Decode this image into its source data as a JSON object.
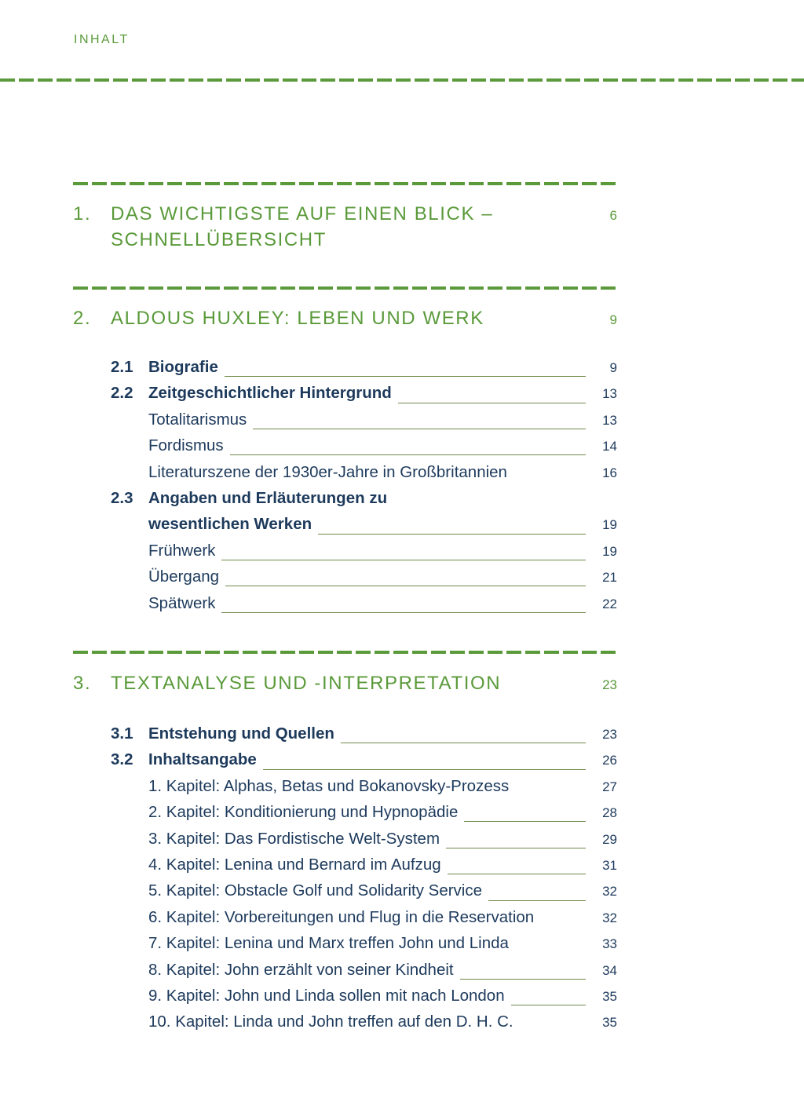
{
  "running_head": "INHALT",
  "colors": {
    "accent_green": "#5a9a3a",
    "text_navy": "#1d3a5c"
  },
  "sections": [
    {
      "num": "1.",
      "title_lines": [
        "DAS WICHTIGSTE AUF EINEN BLICK –",
        "SCHNELLÜBERSICHT"
      ],
      "page": "6",
      "entries": []
    },
    {
      "num": "2.",
      "title_lines": [
        "ALDOUS HUXLEY: LEBEN UND WERK"
      ],
      "page": "9",
      "entries": [
        {
          "num": "2.1",
          "title": "Biografie",
          "page": "9",
          "bold": true,
          "leader": true
        },
        {
          "num": "2.2",
          "title": "Zeitgeschichtlicher Hintergrund",
          "page": "13",
          "bold": true,
          "leader": true
        },
        {
          "num": "",
          "title": "Totalitarismus",
          "page": "13",
          "bold": false,
          "leader": true
        },
        {
          "num": "",
          "title": "Fordismus",
          "page": "14",
          "bold": false,
          "leader": true
        },
        {
          "num": "",
          "title": "Literaturszene der 1930er-Jahre in Großbritannien",
          "page": "16",
          "bold": false,
          "leader": false
        },
        {
          "num": "2.3",
          "title": "Angaben und Erläuterungen zu",
          "page": "",
          "bold": true,
          "leader": false
        },
        {
          "num": "",
          "title": "wesentlichen Werken",
          "page": "19",
          "bold": true,
          "leader": true
        },
        {
          "num": "",
          "title": "Frühwerk",
          "page": "19",
          "bold": false,
          "leader": true
        },
        {
          "num": "",
          "title": "Übergang",
          "page": "21",
          "bold": false,
          "leader": true
        },
        {
          "num": "",
          "title": "Spätwerk",
          "page": "22",
          "bold": false,
          "leader": true
        }
      ]
    },
    {
      "num": "3.",
      "title_lines": [
        "TEXTANALYSE UND -INTERPRETATION"
      ],
      "page": "23",
      "entries": [
        {
          "num": "3.1",
          "title": "Entstehung und Quellen",
          "page": "23",
          "bold": true,
          "leader": true
        },
        {
          "num": "3.2",
          "title": "Inhaltsangabe",
          "page": "26",
          "bold": true,
          "leader": true
        },
        {
          "num": "",
          "title": "1. Kapitel: Alphas, Betas und Bokanovsky-Prozess",
          "page": "27",
          "bold": false,
          "leader": false
        },
        {
          "num": "",
          "title": "2. Kapitel: Konditionierung und Hypnopädie",
          "page": "28",
          "bold": false,
          "leader": true
        },
        {
          "num": "",
          "title": "3. Kapitel: Das Fordistische Welt-System",
          "page": "29",
          "bold": false,
          "leader": true
        },
        {
          "num": "",
          "title": "4. Kapitel: Lenina und Bernard im Aufzug",
          "page": "31",
          "bold": false,
          "leader": true
        },
        {
          "num": "",
          "title": "5. Kapitel: Obstacle Golf und Solidarity Service",
          "page": "32",
          "bold": false,
          "leader": true
        },
        {
          "num": "",
          "title": "6. Kapitel: Vorbereitungen und Flug in die Reservation",
          "page": "32",
          "bold": false,
          "leader": false
        },
        {
          "num": "",
          "title": "7. Kapitel: Lenina und Marx treffen John und Linda",
          "page": "33",
          "bold": false,
          "leader": false
        },
        {
          "num": "",
          "title": "8. Kapitel: John erzählt von seiner Kindheit",
          "page": "34",
          "bold": false,
          "leader": true
        },
        {
          "num": "",
          "title": "9. Kapitel: John und Linda sollen mit nach London",
          "page": "35",
          "bold": false,
          "leader": true
        },
        {
          "num": "",
          "title": "10. Kapitel: Linda und John treffen auf den D. H. C.",
          "page": "35",
          "bold": false,
          "leader": false
        }
      ]
    }
  ]
}
